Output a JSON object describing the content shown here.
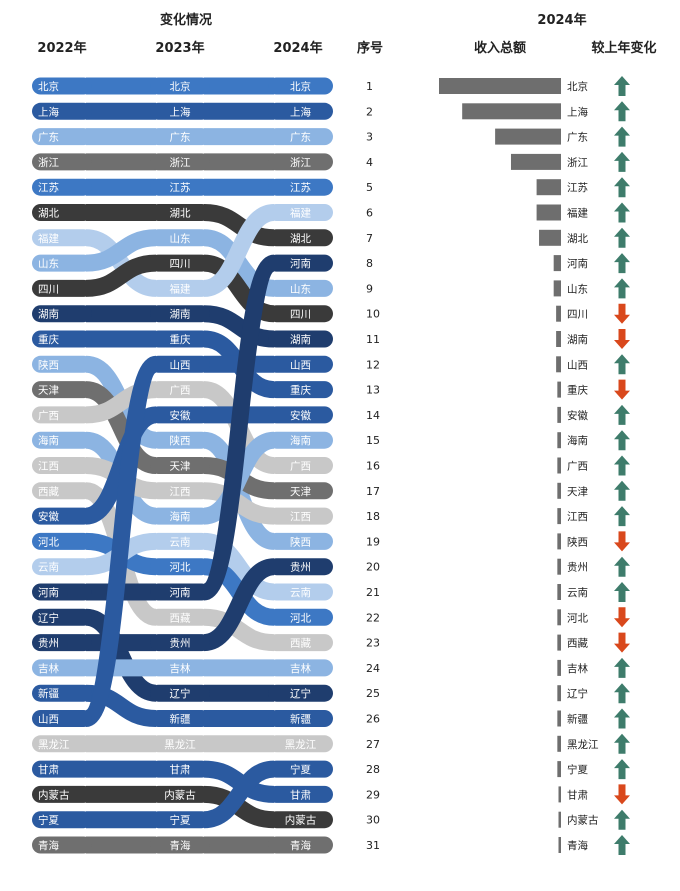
{
  "header": {
    "left_title": "变化情况",
    "right_title": "2024年",
    "col_2022": "2022年",
    "col_2023": "2023年",
    "col_2024": "2024年",
    "col_rank": "序号",
    "col_income": "收入总额",
    "col_change": "较上年变化"
  },
  "colors": {
    "dark_navy": "#1f3d6e",
    "navy": "#2b5aa0",
    "blue": "#3d78c4",
    "light_blue": "#8cb4e2",
    "pale_blue": "#b3cdec",
    "charcoal": "#3a3a3a",
    "gray": "#6f6f6f",
    "light_gray": "#c8c8c8",
    "bar_gray": "#6e6e6e",
    "arrow_up": "#3e7c6b",
    "arrow_down": "#d9481c"
  },
  "chart_data": {
    "type": "bump",
    "ranks": [
      1,
      2,
      3,
      4,
      5,
      6,
      7,
      8,
      9,
      10,
      11,
      12,
      13,
      14,
      15,
      16,
      17,
      18,
      19,
      20,
      21,
      22,
      23,
      24,
      25,
      26,
      27,
      28,
      29,
      30,
      31
    ],
    "years": [
      "2022年",
      "2023年",
      "2024年"
    ],
    "order_2022": [
      "北京",
      "上海",
      "广东",
      "浙江",
      "江苏",
      "湖北",
      "福建",
      "山东",
      "四川",
      "湖南",
      "重庆",
      "陕西",
      "天津",
      "广西",
      "海南",
      "江西",
      "西藏",
      "安徽",
      "河北",
      "云南",
      "河南",
      "辽宁",
      "贵州",
      "吉林",
      "新疆",
      "山西",
      "黑龙江",
      "甘肃",
      "内蒙古",
      "宁夏",
      "青海"
    ],
    "order_2023": [
      "北京",
      "上海",
      "广东",
      "浙江",
      "江苏",
      "湖北",
      "山东",
      "四川",
      "福建",
      "湖南",
      "重庆",
      "山西",
      "广西",
      "安徽",
      "陕西",
      "天津",
      "江西",
      "海南",
      "云南",
      "河北",
      "河南",
      "西藏",
      "贵州",
      "吉林",
      "辽宁",
      "新疆",
      "黑龙江",
      "甘肃",
      "内蒙古",
      "宁夏",
      "青海"
    ],
    "order_2024": [
      "北京",
      "上海",
      "广东",
      "浙江",
      "江苏",
      "福建",
      "湖北",
      "河南",
      "山东",
      "四川",
      "湖南",
      "山西",
      "重庆",
      "安徽",
      "海南",
      "广西",
      "天津",
      "江西",
      "陕西",
      "贵州",
      "云南",
      "河北",
      "西藏",
      "吉林",
      "辽宁",
      "新疆",
      "黑龙江",
      "宁夏",
      "甘肃",
      "内蒙古",
      "青海"
    ],
    "income_2024": [
      10.0,
      8.1,
      5.4,
      4.1,
      2.0,
      2.0,
      1.8,
      0.6,
      0.6,
      0.4,
      0.4,
      0.4,
      0.3,
      0.3,
      0.3,
      0.3,
      0.3,
      0.3,
      0.3,
      0.3,
      0.3,
      0.3,
      0.3,
      0.3,
      0.3,
      0.3,
      0.3,
      0.3,
      0.2,
      0.2,
      0.2
    ],
    "change_2024": [
      "up",
      "up",
      "up",
      "up",
      "up",
      "up",
      "up",
      "up",
      "up",
      "down",
      "down",
      "up",
      "down",
      "up",
      "up",
      "up",
      "up",
      "up",
      "down",
      "up",
      "up",
      "down",
      "down",
      "up",
      "up",
      "up",
      "up",
      "up",
      "down",
      "up",
      "up"
    ],
    "province_colors": {
      "北京": "blue",
      "上海": "navy",
      "广东": "light_blue",
      "浙江": "gray",
      "江苏": "blue",
      "湖北": "charcoal",
      "福建": "pale_blue",
      "山东": "light_blue",
      "四川": "charcoal",
      "湖南": "dark_navy",
      "重庆": "navy",
      "陕西": "light_blue",
      "天津": "gray",
      "广西": "light_gray",
      "海南": "light_blue",
      "江西": "light_gray",
      "西藏": "light_gray",
      "安徽": "navy",
      "河北": "blue",
      "云南": "pale_blue",
      "河南": "dark_navy",
      "辽宁": "dark_navy",
      "贵州": "dark_navy",
      "吉林": "light_blue",
      "新疆": "navy",
      "山西": "navy",
      "黑龙江": "light_gray",
      "甘肃": "navy",
      "内蒙古": "charcoal",
      "宁夏": "navy",
      "青海": "gray"
    }
  }
}
